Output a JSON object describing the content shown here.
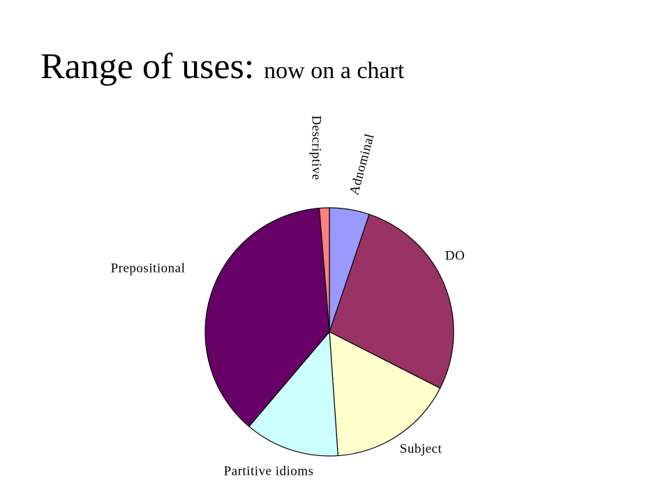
{
  "chart_data": {
    "type": "pie",
    "title": "Range of uses:",
    "subtitle": "now on a chart",
    "categories": [
      "Adnominal",
      "DO",
      "Subject",
      "Partitive idioms",
      "Prepositional",
      "Descriptive"
    ],
    "values": [
      5.2,
      27.3,
      16.4,
      12.3,
      37.5,
      1.3
    ],
    "colors": [
      "#9999ff",
      "#993366",
      "#ffffcc",
      "#ccffff",
      "#660066",
      "#ff8080"
    ]
  }
}
